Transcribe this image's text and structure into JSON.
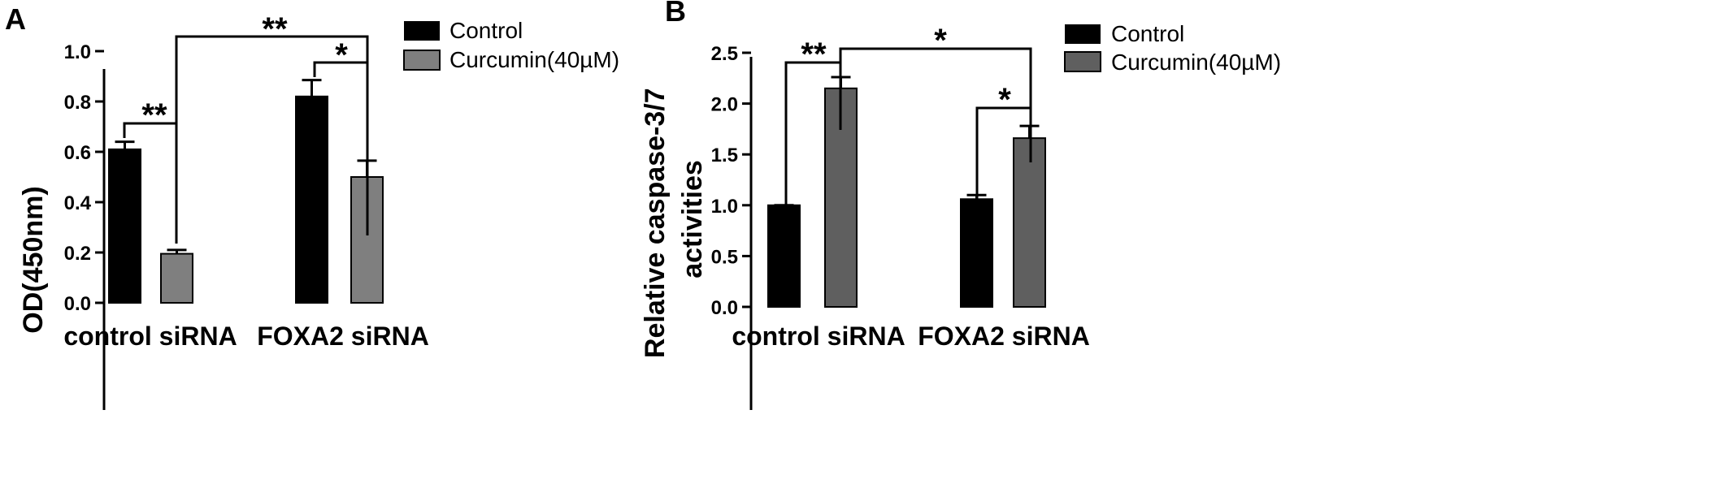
{
  "chart_data": [
    {
      "panel": "A",
      "type": "bar",
      "ylabel": "OD(450nm)",
      "xlabel": "",
      "ylim": [
        0,
        1.0
      ],
      "yticks": [
        "0.0",
        "0.2",
        "0.4",
        "0.6",
        "0.8",
        "1.0"
      ],
      "categories": [
        "control siRNA",
        "FOXA2 siRNA"
      ],
      "series": [
        {
          "name": "Control",
          "color": "#000000",
          "values": [
            0.61,
            0.82
          ],
          "errors": [
            0.03,
            0.065
          ]
        },
        {
          "name": "Curcumin(40µM)",
          "color": "#7f7f7f",
          "values": [
            0.195,
            0.5
          ],
          "errors": [
            0.015,
            0.065
          ]
        }
      ],
      "legend_position": "top-right",
      "grid": false,
      "significance": [
        "**",
        "*",
        "**"
      ]
    },
    {
      "panel": "B",
      "type": "bar",
      "ylabel": "Relative caspase-3/7 activities",
      "xlabel": "",
      "ylim": [
        0,
        2.5
      ],
      "yticks": [
        "0.0",
        "0.5",
        "1.0",
        "1.5",
        "2.0",
        "2.5"
      ],
      "categories": [
        "control siRNA",
        "FOXA2 siRNA"
      ],
      "series": [
        {
          "name": "Control",
          "color": "#000000",
          "values": [
            1.0,
            1.06
          ],
          "errors": [
            0.0,
            0.04
          ]
        },
        {
          "name": "Curcumin(40µM)",
          "color": "#5f5f5f",
          "values": [
            2.15,
            1.66
          ],
          "errors": [
            0.11,
            0.12
          ]
        }
      ],
      "legend_position": "top-right",
      "grid": false,
      "significance": [
        "**",
        "*",
        "*"
      ]
    }
  ]
}
